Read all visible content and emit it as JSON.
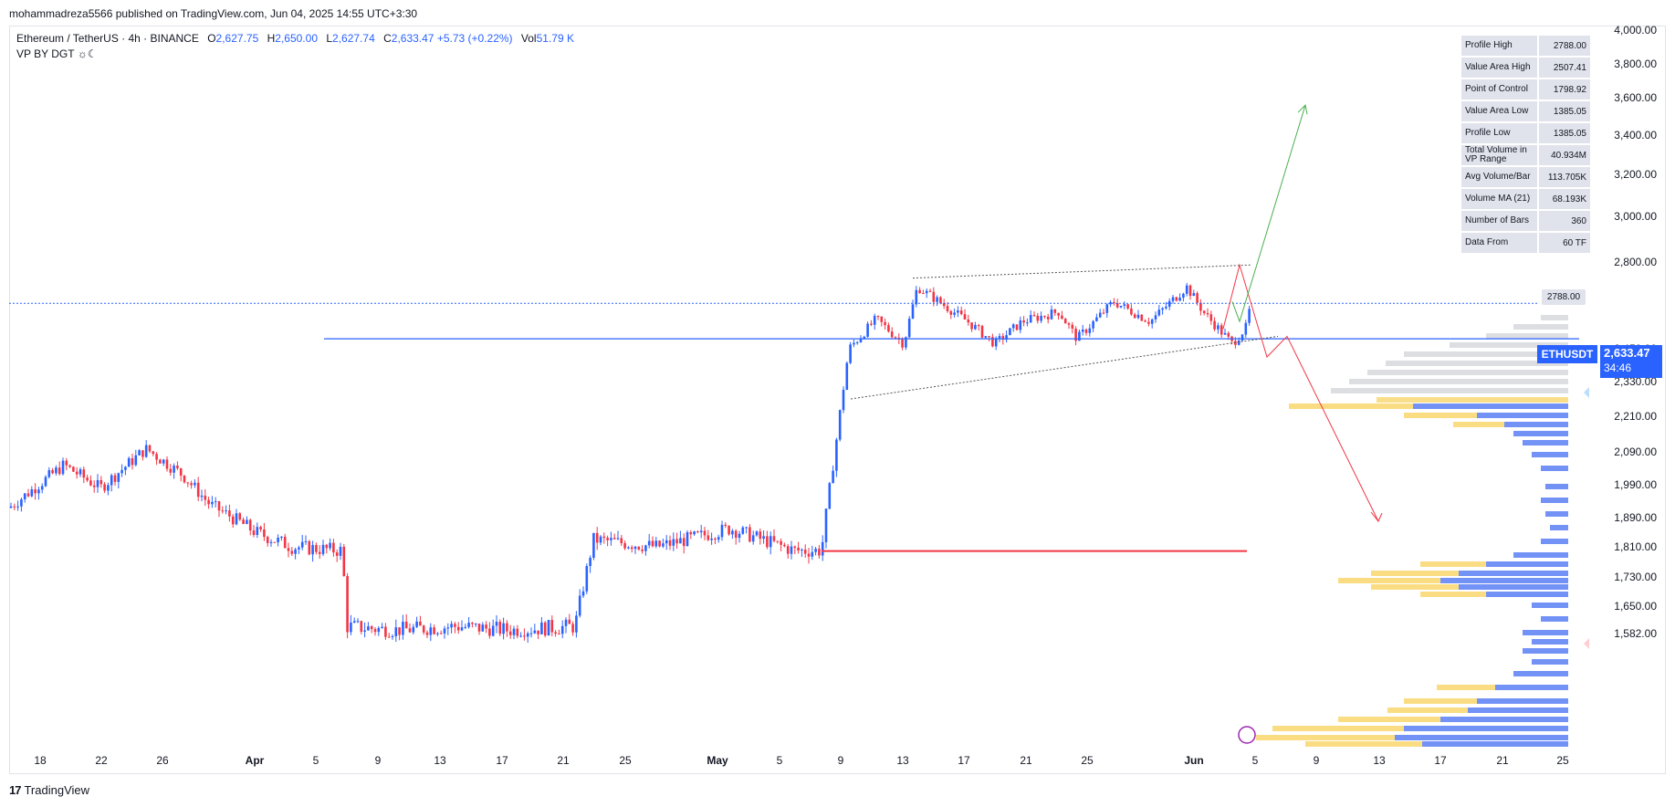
{
  "header": {
    "published_by": "mohammadreza5566 published on TradingView.com, Jun 04, 2025 14:55 UTC+3:30"
  },
  "legend": {
    "symbol": "Ethereum / TetherUS · 4h · BINANCE",
    "open_label": "O",
    "open": "2,627.75",
    "high_label": "H",
    "high": "2,650.00",
    "low_label": "L",
    "low": "2,627.74",
    "close_label": "C",
    "close": "2,633.47",
    "change": "+5.73 (+0.22%)",
    "vol_label": "Vol",
    "vol": "51.79 K",
    "indicator": "VP BY DGT ☼☾"
  },
  "stats_table": [
    {
      "label": "Profile High",
      "value": "2788.00"
    },
    {
      "label": "Value Area High",
      "value": "2507.41"
    },
    {
      "label": "Point of Control",
      "value": "1798.92"
    },
    {
      "label": "Value Area Low",
      "value": "1385.05"
    },
    {
      "label": "Profile Low",
      "value": "1385.05"
    },
    {
      "label": "Total Volume in VP Range",
      "value": "40.934M"
    },
    {
      "label": "Avg Volume/Bar",
      "value": "113.705K"
    },
    {
      "label": "Volume MA (21)",
      "value": "68.193K"
    },
    {
      "label": "Number of Bars",
      "value": "360"
    },
    {
      "label": "Data From",
      "value": "60 TF"
    }
  ],
  "price_tag": {
    "symbol": "ETHUSDT",
    "price": "2,633.47",
    "countdown": "34:46"
  },
  "profile_high_tag": "2788.00",
  "footer": {
    "brand": "TradingView",
    "logo": "17"
  },
  "colors": {
    "up": "#2962ff",
    "down": "#f23645",
    "poc_line": "#f23645",
    "support_line": "#2962ff",
    "bull_arrow": "#4caf50",
    "bear_arrow": "#f23645",
    "vp_gray": "#b2b5be",
    "vp_yellow": "#f9d976",
    "vp_blue": "#5b7ff5",
    "vp_teal": "#26c6b0"
  },
  "chart_data": {
    "type": "candlestick",
    "title": "",
    "symbol": "ETHUSDT",
    "timeframe": "4h",
    "x_ticks": [
      "18",
      "22",
      "26",
      "Apr",
      "5",
      "9",
      "13",
      "17",
      "21",
      "25",
      "May",
      "5",
      "9",
      "13",
      "17",
      "21",
      "25",
      "Jun",
      "5",
      "9",
      "13",
      "17",
      "21",
      "25"
    ],
    "y_ticks": [
      "4,000.00",
      "3,800.00",
      "3,600.00",
      "3,400.00",
      "3,200.00",
      "3,000.00",
      "2,800.00",
      "2,450.00",
      "2,330.00",
      "2,210.00",
      "2,090.00",
      "1,990.00",
      "1,890.00",
      "1,810.00",
      "1,730.00",
      "1,650.00",
      "1,582.00"
    ],
    "current_price": 2633.47,
    "horizontal_lines": [
      {
        "name": "support",
        "price": 2490
      },
      {
        "name": "point-of-control",
        "price": 1798.92
      }
    ],
    "trend_channel": {
      "upper": [
        [
          2735,
          2788
        ]
      ],
      "lower": [
        [
          2270,
          2500
        ]
      ]
    },
    "path_segments": [
      {
        "name": "close-path",
        "points": [
          1800,
          2000,
          2100,
          2550,
          2700,
          2600,
          2750,
          2650,
          2550,
          2500,
          2580,
          2640
        ]
      }
    ],
    "projections": {
      "bullish_target": 3560,
      "bearish_path": [
        2788,
        2420,
        2500,
        1880
      ]
    },
    "volume_profile": {
      "profile_high": 2788.0,
      "value_area_high": 2507.41,
      "point_of_control": 1798.92,
      "profile_low": 1385.05
    }
  }
}
